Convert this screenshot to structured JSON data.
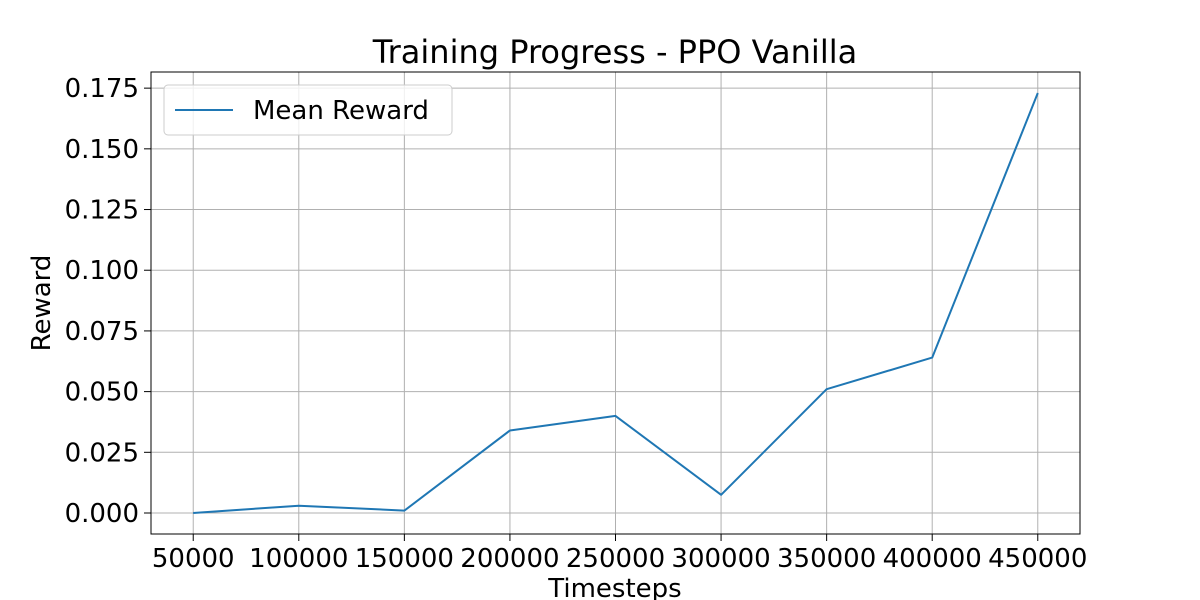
{
  "chart_data": {
    "type": "line",
    "title": "Training Progress - PPO Vanilla",
    "xlabel": "Timesteps",
    "ylabel": "Reward",
    "x": [
      50000,
      100000,
      150000,
      200000,
      250000,
      300000,
      350000,
      400000,
      450000
    ],
    "series": [
      {
        "name": "Mean Reward",
        "color": "#1f77b4",
        "values": [
          0.0,
          0.003,
          0.001,
          0.034,
          0.04,
          0.0075,
          0.051,
          0.064,
          0.173
        ]
      }
    ],
    "xticks": [
      50000,
      100000,
      150000,
      200000,
      250000,
      300000,
      350000,
      400000,
      450000
    ],
    "xtick_labels": [
      "50000",
      "100000",
      "150000",
      "200000",
      "250000",
      "300000",
      "350000",
      "400000",
      "450000"
    ],
    "yticks": [
      0.0,
      0.025,
      0.05,
      0.075,
      0.1,
      0.125,
      0.15,
      0.175
    ],
    "ytick_labels": [
      "0.000",
      "0.025",
      "0.050",
      "0.075",
      "0.100",
      "0.125",
      "0.150",
      "0.175"
    ],
    "xlim": [
      30000,
      470000
    ],
    "ylim": [
      -0.00865,
      0.18165
    ],
    "grid": true,
    "legend_position": "top-left"
  }
}
